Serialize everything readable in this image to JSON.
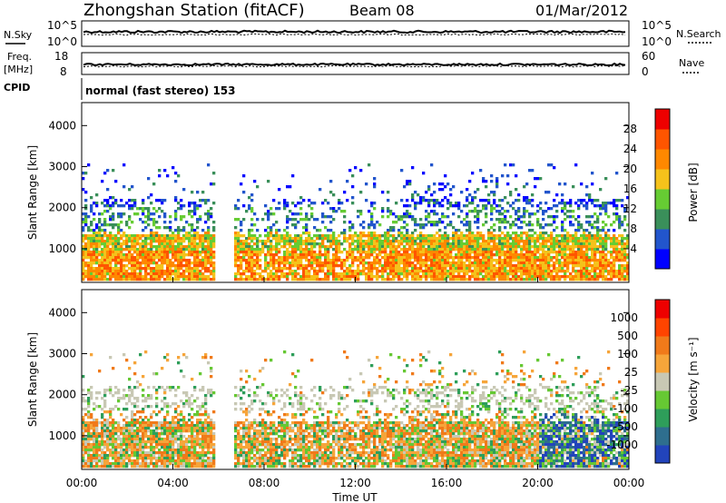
{
  "header": {
    "station": "Zhongshan Station (fitACF)",
    "beam": "Beam 08",
    "date": "01/Mar/2012"
  },
  "top_panels": {
    "nsky_label": "N.Sky",
    "nsearch_label": "N.Search",
    "nsky_ticks": [
      "10^5",
      "10^0"
    ],
    "nsearch_ticks": [
      "10^5",
      "10^0"
    ],
    "freq_label": "Freq.",
    "freq_unit": "[MHz]",
    "freq_ticks": [
      "18",
      "8"
    ],
    "nave_label": "Nave",
    "nave_ticks": [
      "60",
      "0"
    ],
    "cpid_label": "CPID",
    "cpid_value": "normal (fast stereo) 153"
  },
  "colors": {
    "power": [
      "#0000ff",
      "#2255cc",
      "#3a8f5a",
      "#66cc33",
      "#f5c21b",
      "#ff8800",
      "#ff5500",
      "#ee0000"
    ],
    "velocity": [
      "#2244bb",
      "#2e6e8e",
      "#2e9e5a",
      "#66c833",
      "#c8c8b4",
      "#f6a53a",
      "#f07a1a",
      "#ff4400",
      "#ee0000"
    ]
  },
  "chart_data": [
    {
      "type": "heatmap",
      "title": "Power",
      "ylabel": "Slant Range [km]",
      "xlabel": "Time UT",
      "y_ticks": [
        "1000",
        "2000",
        "3000",
        "4000"
      ],
      "x_ticks": [
        "00:00",
        "04:00",
        "08:00",
        "12:00",
        "16:00",
        "20:00",
        "00:00"
      ],
      "ylim": [
        180,
        4560
      ],
      "xlim_hours": [
        0,
        24
      ],
      "colorbar": {
        "label": "Power [dB]",
        "ticks": [
          "4",
          "8",
          "12",
          "16",
          "20",
          "24",
          "28"
        ]
      }
    },
    {
      "type": "heatmap",
      "title": "Velocity",
      "ylabel": "Slant Range [km]",
      "xlabel": "Time UT",
      "y_ticks": [
        "1000",
        "2000",
        "3000",
        "4000"
      ],
      "x_ticks": [
        "00:00",
        "04:00",
        "08:00",
        "12:00",
        "16:00",
        "20:00",
        "00:00"
      ],
      "ylim": [
        180,
        4560
      ],
      "xlim_hours": [
        0,
        24
      ],
      "colorbar": {
        "label": "Velocity [m s⁻¹]",
        "ticks": [
          "1000",
          "500",
          "100",
          "25",
          "-25",
          "-100",
          "-500",
          "-1000"
        ]
      }
    }
  ]
}
